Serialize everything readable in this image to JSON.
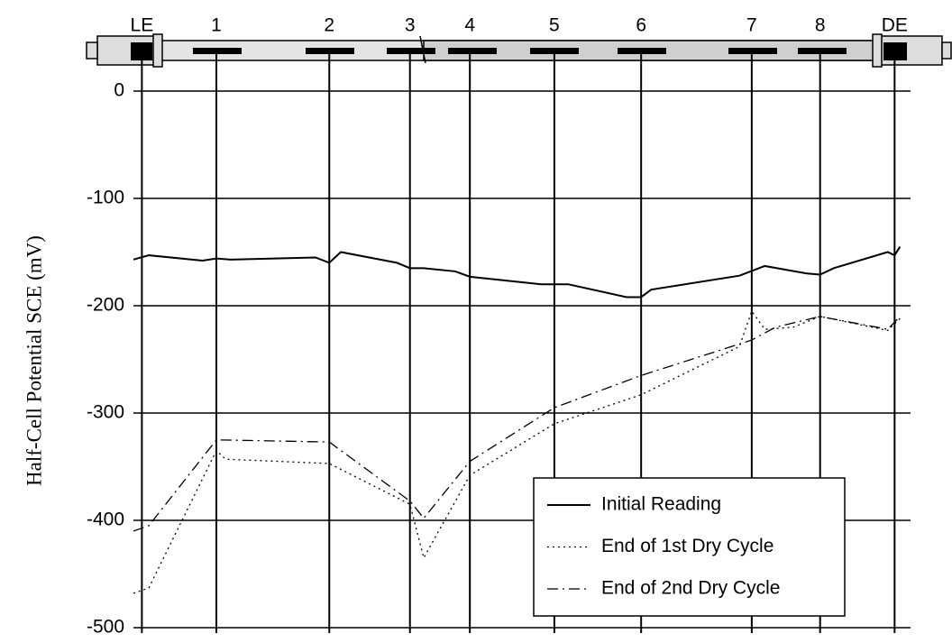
{
  "chart_data": {
    "type": "line",
    "y_label": "Half-Cell Potential SCE (mV)",
    "xlim": [
      0,
      100
    ],
    "xticks": [
      {
        "value": 1.1,
        "label": "LE"
      },
      {
        "value": 10.8,
        "label": "1"
      },
      {
        "value": 25.5,
        "label": "2"
      },
      {
        "value": 36.0,
        "label": "3"
      },
      {
        "value": 43.8,
        "label": "4"
      },
      {
        "value": 54.8,
        "label": "5"
      },
      {
        "value": 66.1,
        "label": "6"
      },
      {
        "value": 80.5,
        "label": "7"
      },
      {
        "value": 89.4,
        "label": "8"
      },
      {
        "value": 99.1,
        "label": "DE"
      }
    ],
    "ylim": [
      -500,
      0
    ],
    "yticks": [
      0,
      -100,
      -200,
      -300,
      -400,
      -500
    ],
    "grid": true,
    "legend": "lower right",
    "series": [
      {
        "name": "Initial Reading",
        "color": "#000000",
        "style": "solid",
        "x": [
          0,
          2.0,
          9.0,
          10.8,
          12.6,
          23.7,
          25.5,
          27.0,
          34.3,
          36.0,
          37.8,
          41.9,
          43.8,
          53.1,
          56.6,
          64.2,
          66.1,
          67.4,
          78.9,
          82.2,
          87.7,
          89.4,
          91.2,
          98.2,
          99.1,
          99.8
        ],
        "values": [
          -157,
          -153,
          -158,
          -156,
          -157,
          -155,
          -160,
          -150,
          -160,
          -165,
          -165,
          -168,
          -173,
          -180,
          -180,
          -192,
          -192,
          -185,
          -172,
          -163,
          -170,
          -171,
          -165,
          -150,
          -153,
          -145
        ]
      },
      {
        "name": "End of 1st Dry Cycle",
        "color": "#000000",
        "style": "dotted",
        "x": [
          0,
          2.0,
          10.8,
          12.0,
          25.5,
          36.0,
          37.8,
          43.8,
          54.8,
          66.1,
          78.9,
          80.5,
          82.2,
          85.9,
          89.4,
          98.2,
          99.8
        ],
        "values": [
          -468,
          -463,
          -335,
          -343,
          -347,
          -385,
          -435,
          -358,
          -310,
          -283,
          -238,
          -205,
          -222,
          -220,
          -210,
          -223,
          -212
        ]
      },
      {
        "name": "End of 2nd Dry Cycle",
        "color": "#000000",
        "style": "dashdot",
        "x": [
          0,
          2.0,
          10.8,
          25.5,
          36.0,
          37.8,
          43.8,
          54.8,
          66.1,
          80.5,
          83.6,
          89.4,
          98.2,
          99.8
        ],
        "values": [
          -410,
          -405,
          -325,
          -327,
          -382,
          -398,
          -345,
          -295,
          -265,
          -232,
          -220,
          -210,
          -222,
          -210
        ]
      }
    ]
  }
}
